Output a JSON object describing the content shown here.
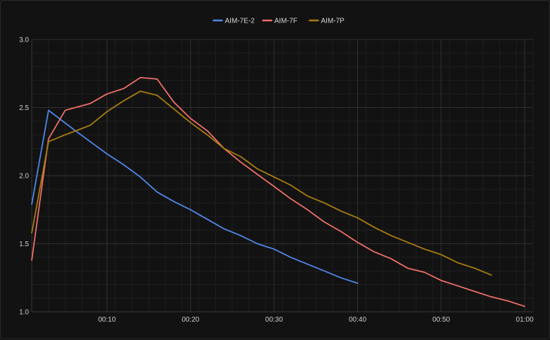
{
  "chart_data": {
    "type": "line",
    "title": "",
    "xlabel": "",
    "ylabel": "",
    "xlim": [
      1,
      61
    ],
    "ylim": [
      1.0,
      3.0
    ],
    "legend_position": "top-center",
    "grid": true,
    "x_ticks": [
      {
        "value": 10,
        "label": "00:10"
      },
      {
        "value": 20,
        "label": "00:20"
      },
      {
        "value": 30,
        "label": "00:30"
      },
      {
        "value": 40,
        "label": "00:40"
      },
      {
        "value": 50,
        "label": "00:50"
      },
      {
        "value": 60,
        "label": "01:00"
      }
    ],
    "y_ticks": [
      {
        "value": 1.0,
        "label": "1.0"
      },
      {
        "value": 1.5,
        "label": "1.5"
      },
      {
        "value": 2.0,
        "label": "2.0"
      },
      {
        "value": 2.5,
        "label": "2.5"
      },
      {
        "value": 3.0,
        "label": "3.0"
      }
    ],
    "series": [
      {
        "name": "AIM-7E-2",
        "color": "#4f86e8",
        "points": [
          [
            1,
            1.79
          ],
          [
            3,
            2.48
          ],
          [
            6,
            2.34
          ],
          [
            8,
            2.25
          ],
          [
            10,
            2.16
          ],
          [
            12,
            2.08
          ],
          [
            14,
            1.99
          ],
          [
            16,
            1.88
          ],
          [
            18,
            1.81
          ],
          [
            20,
            1.75
          ],
          [
            22,
            1.68
          ],
          [
            24,
            1.61
          ],
          [
            26,
            1.56
          ],
          [
            28,
            1.5
          ],
          [
            30,
            1.46
          ],
          [
            32,
            1.4
          ],
          [
            34,
            1.35
          ],
          [
            36,
            1.3
          ],
          [
            38,
            1.25
          ],
          [
            40,
            1.21
          ]
        ]
      },
      {
        "name": "AIM-7F",
        "color": "#ee6e68",
        "points": [
          [
            1,
            1.38
          ],
          [
            3,
            2.27
          ],
          [
            5,
            2.48
          ],
          [
            8,
            2.53
          ],
          [
            10,
            2.6
          ],
          [
            12,
            2.64
          ],
          [
            14,
            2.72
          ],
          [
            16,
            2.71
          ],
          [
            18,
            2.54
          ],
          [
            20,
            2.42
          ],
          [
            22,
            2.33
          ],
          [
            24,
            2.2
          ],
          [
            26,
            2.1
          ],
          [
            28,
            2.01
          ],
          [
            30,
            1.92
          ],
          [
            32,
            1.83
          ],
          [
            34,
            1.75
          ],
          [
            36,
            1.66
          ],
          [
            38,
            1.59
          ],
          [
            40,
            1.51
          ],
          [
            42,
            1.44
          ],
          [
            44,
            1.39
          ],
          [
            46,
            1.32
          ],
          [
            48,
            1.29
          ],
          [
            50,
            1.23
          ],
          [
            52,
            1.19
          ],
          [
            54,
            1.15
          ],
          [
            56,
            1.11
          ],
          [
            58,
            1.08
          ],
          [
            60,
            1.04
          ]
        ]
      },
      {
        "name": "AIM-7P",
        "color": "#a87c12",
        "points": [
          [
            1,
            1.58
          ],
          [
            3,
            2.25
          ],
          [
            5,
            2.3
          ],
          [
            8,
            2.37
          ],
          [
            10,
            2.47
          ],
          [
            12,
            2.55
          ],
          [
            14,
            2.62
          ],
          [
            16,
            2.59
          ],
          [
            18,
            2.49
          ],
          [
            20,
            2.39
          ],
          [
            22,
            2.3
          ],
          [
            24,
            2.2
          ],
          [
            26,
            2.14
          ],
          [
            28,
            2.05
          ],
          [
            30,
            1.99
          ],
          [
            32,
            1.93
          ],
          [
            34,
            1.85
          ],
          [
            36,
            1.8
          ],
          [
            38,
            1.74
          ],
          [
            40,
            1.69
          ],
          [
            42,
            1.62
          ],
          [
            44,
            1.56
          ],
          [
            46,
            1.51
          ],
          [
            48,
            1.46
          ],
          [
            50,
            1.42
          ],
          [
            52,
            1.36
          ],
          [
            54,
            1.32
          ],
          [
            56,
            1.27
          ]
        ]
      }
    ]
  }
}
